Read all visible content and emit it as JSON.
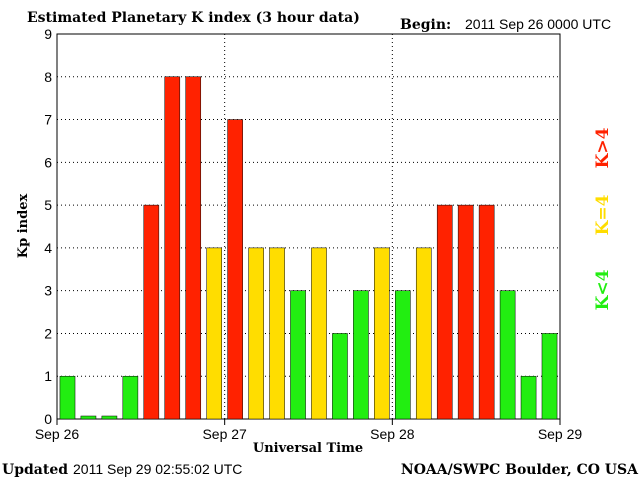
{
  "header": {
    "title": "Estimated Planetary K index (3 hour data)",
    "begin_label": "Begin:",
    "begin_value": "2011 Sep 26 0000 UTC"
  },
  "footer": {
    "updated_label": "Updated",
    "updated_value": "2011 Sep 29 02:55:02 UTC",
    "source": "NOAA/SWPC Boulder, CO USA"
  },
  "legend": {
    "low": "K<4",
    "mid": "K=4",
    "high": "K>4"
  },
  "colors": {
    "low": "#22ee11",
    "mid": "#ffdd00",
    "high": "#ff2200",
    "grid": "#000000"
  },
  "chart_data": {
    "type": "bar",
    "title": "Estimated Planetary K index (3 hour data)",
    "xlabel": "Universal Time",
    "ylabel": "Kp index",
    "ylim": [
      0,
      9
    ],
    "yticks": [
      0,
      1,
      2,
      3,
      4,
      5,
      6,
      7,
      8,
      9
    ],
    "xticks": [
      "Sep 26",
      "Sep 27",
      "Sep 28",
      "Sep 29"
    ],
    "interval_hours": 3,
    "grid": true,
    "values": [
      1,
      0,
      0,
      1,
      5,
      8,
      8,
      4,
      7,
      4,
      4,
      3,
      4,
      2,
      3,
      4,
      3,
      4,
      5,
      5,
      5,
      3,
      1,
      2
    ]
  }
}
